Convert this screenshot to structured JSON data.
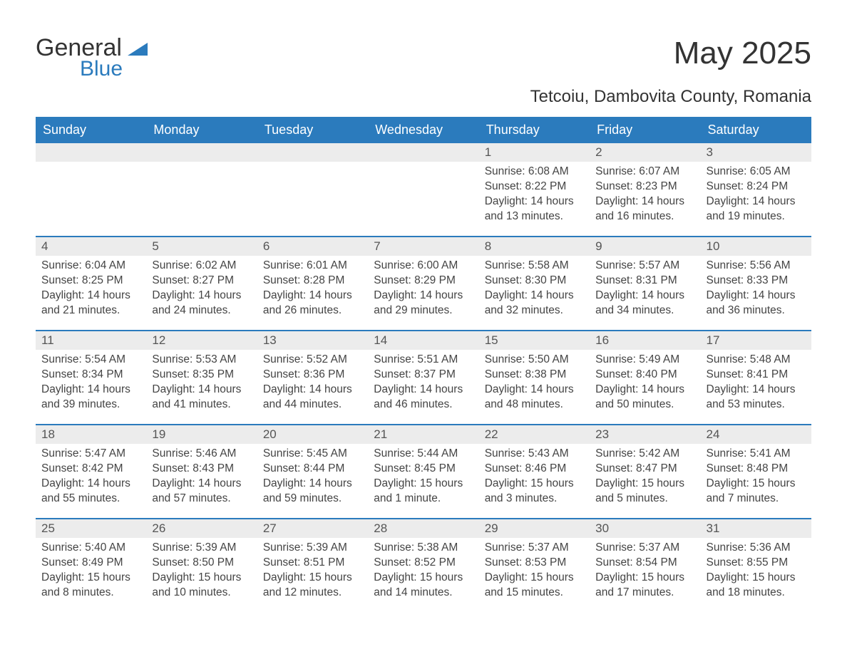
{
  "brand": {
    "name1": "General",
    "name2": "Blue"
  },
  "title": "May 2025",
  "location": "Tetcoiu, Dambovita County, Romania",
  "colors": {
    "header_bg": "#2b7bbd",
    "header_text": "#ffffff",
    "row_divider": "#2b7bbd",
    "daynum_bg": "#ececec",
    "text": "#333333",
    "muted": "#555555",
    "page_bg": "#ffffff"
  },
  "fontsize": {
    "title": 44,
    "subtitle": 24,
    "header": 18,
    "daynum": 17,
    "body": 15.5
  },
  "weekdays": [
    "Sunday",
    "Monday",
    "Tuesday",
    "Wednesday",
    "Thursday",
    "Friday",
    "Saturday"
  ],
  "weeks": [
    [
      null,
      null,
      null,
      null,
      {
        "n": "1",
        "sr": "Sunrise: 6:08 AM",
        "ss": "Sunset: 8:22 PM",
        "d1": "Daylight: 14 hours",
        "d2": "and 13 minutes."
      },
      {
        "n": "2",
        "sr": "Sunrise: 6:07 AM",
        "ss": "Sunset: 8:23 PM",
        "d1": "Daylight: 14 hours",
        "d2": "and 16 minutes."
      },
      {
        "n": "3",
        "sr": "Sunrise: 6:05 AM",
        "ss": "Sunset: 8:24 PM",
        "d1": "Daylight: 14 hours",
        "d2": "and 19 minutes."
      }
    ],
    [
      {
        "n": "4",
        "sr": "Sunrise: 6:04 AM",
        "ss": "Sunset: 8:25 PM",
        "d1": "Daylight: 14 hours",
        "d2": "and 21 minutes."
      },
      {
        "n": "5",
        "sr": "Sunrise: 6:02 AM",
        "ss": "Sunset: 8:27 PM",
        "d1": "Daylight: 14 hours",
        "d2": "and 24 minutes."
      },
      {
        "n": "6",
        "sr": "Sunrise: 6:01 AM",
        "ss": "Sunset: 8:28 PM",
        "d1": "Daylight: 14 hours",
        "d2": "and 26 minutes."
      },
      {
        "n": "7",
        "sr": "Sunrise: 6:00 AM",
        "ss": "Sunset: 8:29 PM",
        "d1": "Daylight: 14 hours",
        "d2": "and 29 minutes."
      },
      {
        "n": "8",
        "sr": "Sunrise: 5:58 AM",
        "ss": "Sunset: 8:30 PM",
        "d1": "Daylight: 14 hours",
        "d2": "and 32 minutes."
      },
      {
        "n": "9",
        "sr": "Sunrise: 5:57 AM",
        "ss": "Sunset: 8:31 PM",
        "d1": "Daylight: 14 hours",
        "d2": "and 34 minutes."
      },
      {
        "n": "10",
        "sr": "Sunrise: 5:56 AM",
        "ss": "Sunset: 8:33 PM",
        "d1": "Daylight: 14 hours",
        "d2": "and 36 minutes."
      }
    ],
    [
      {
        "n": "11",
        "sr": "Sunrise: 5:54 AM",
        "ss": "Sunset: 8:34 PM",
        "d1": "Daylight: 14 hours",
        "d2": "and 39 minutes."
      },
      {
        "n": "12",
        "sr": "Sunrise: 5:53 AM",
        "ss": "Sunset: 8:35 PM",
        "d1": "Daylight: 14 hours",
        "d2": "and 41 minutes."
      },
      {
        "n": "13",
        "sr": "Sunrise: 5:52 AM",
        "ss": "Sunset: 8:36 PM",
        "d1": "Daylight: 14 hours",
        "d2": "and 44 minutes."
      },
      {
        "n": "14",
        "sr": "Sunrise: 5:51 AM",
        "ss": "Sunset: 8:37 PM",
        "d1": "Daylight: 14 hours",
        "d2": "and 46 minutes."
      },
      {
        "n": "15",
        "sr": "Sunrise: 5:50 AM",
        "ss": "Sunset: 8:38 PM",
        "d1": "Daylight: 14 hours",
        "d2": "and 48 minutes."
      },
      {
        "n": "16",
        "sr": "Sunrise: 5:49 AM",
        "ss": "Sunset: 8:40 PM",
        "d1": "Daylight: 14 hours",
        "d2": "and 50 minutes."
      },
      {
        "n": "17",
        "sr": "Sunrise: 5:48 AM",
        "ss": "Sunset: 8:41 PM",
        "d1": "Daylight: 14 hours",
        "d2": "and 53 minutes."
      }
    ],
    [
      {
        "n": "18",
        "sr": "Sunrise: 5:47 AM",
        "ss": "Sunset: 8:42 PM",
        "d1": "Daylight: 14 hours",
        "d2": "and 55 minutes."
      },
      {
        "n": "19",
        "sr": "Sunrise: 5:46 AM",
        "ss": "Sunset: 8:43 PM",
        "d1": "Daylight: 14 hours",
        "d2": "and 57 minutes."
      },
      {
        "n": "20",
        "sr": "Sunrise: 5:45 AM",
        "ss": "Sunset: 8:44 PM",
        "d1": "Daylight: 14 hours",
        "d2": "and 59 minutes."
      },
      {
        "n": "21",
        "sr": "Sunrise: 5:44 AM",
        "ss": "Sunset: 8:45 PM",
        "d1": "Daylight: 15 hours",
        "d2": "and 1 minute."
      },
      {
        "n": "22",
        "sr": "Sunrise: 5:43 AM",
        "ss": "Sunset: 8:46 PM",
        "d1": "Daylight: 15 hours",
        "d2": "and 3 minutes."
      },
      {
        "n": "23",
        "sr": "Sunrise: 5:42 AM",
        "ss": "Sunset: 8:47 PM",
        "d1": "Daylight: 15 hours",
        "d2": "and 5 minutes."
      },
      {
        "n": "24",
        "sr": "Sunrise: 5:41 AM",
        "ss": "Sunset: 8:48 PM",
        "d1": "Daylight: 15 hours",
        "d2": "and 7 minutes."
      }
    ],
    [
      {
        "n": "25",
        "sr": "Sunrise: 5:40 AM",
        "ss": "Sunset: 8:49 PM",
        "d1": "Daylight: 15 hours",
        "d2": "and 8 minutes."
      },
      {
        "n": "26",
        "sr": "Sunrise: 5:39 AM",
        "ss": "Sunset: 8:50 PM",
        "d1": "Daylight: 15 hours",
        "d2": "and 10 minutes."
      },
      {
        "n": "27",
        "sr": "Sunrise: 5:39 AM",
        "ss": "Sunset: 8:51 PM",
        "d1": "Daylight: 15 hours",
        "d2": "and 12 minutes."
      },
      {
        "n": "28",
        "sr": "Sunrise: 5:38 AM",
        "ss": "Sunset: 8:52 PM",
        "d1": "Daylight: 15 hours",
        "d2": "and 14 minutes."
      },
      {
        "n": "29",
        "sr": "Sunrise: 5:37 AM",
        "ss": "Sunset: 8:53 PM",
        "d1": "Daylight: 15 hours",
        "d2": "and 15 minutes."
      },
      {
        "n": "30",
        "sr": "Sunrise: 5:37 AM",
        "ss": "Sunset: 8:54 PM",
        "d1": "Daylight: 15 hours",
        "d2": "and 17 minutes."
      },
      {
        "n": "31",
        "sr": "Sunrise: 5:36 AM",
        "ss": "Sunset: 8:55 PM",
        "d1": "Daylight: 15 hours",
        "d2": "and 18 minutes."
      }
    ]
  ]
}
